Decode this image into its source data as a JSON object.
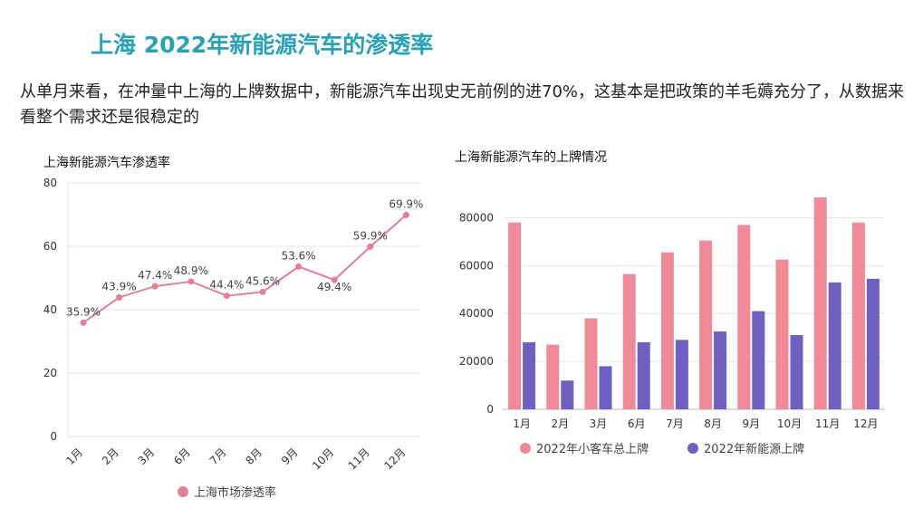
{
  "page": {
    "title": "上海 2022年新能源汽车的渗透率",
    "paragraph": "从单月来看，在冲量中上海的上牌数据中，新能源汽车出现史无前例的进70%，这基本是把政策的羊毛薅充分了，从数据来看整个需求还是很稳定的"
  },
  "chart_data": [
    {
      "type": "line",
      "title": "上海新能源汽车渗透率",
      "categories": [
        "1月",
        "2月",
        "3月",
        "6月",
        "7月",
        "8月",
        "9月",
        "10月",
        "11月",
        "12月"
      ],
      "series": [
        {
          "name": "上海市场渗透率",
          "values": [
            35.9,
            43.9,
            47.4,
            48.9,
            44.4,
            45.6,
            53.6,
            49.4,
            59.9,
            69.9
          ],
          "labels": [
            "35.9%",
            "43.9%",
            "47.4%",
            "48.9%",
            "44.4%",
            "45.6%",
            "53.6%",
            "49.4%",
            "59.9%",
            "69.9%"
          ],
          "color": "#e57f93"
        }
      ],
      "ylim": [
        0,
        80
      ],
      "yticks": [
        0,
        20,
        40,
        60,
        80
      ],
      "legend": "bottom",
      "grid": true
    },
    {
      "type": "bar",
      "title": "上海新能源汽车的上牌情况",
      "categories": [
        "1月",
        "2月",
        "3月",
        "6月",
        "7月",
        "8月",
        "9月",
        "10月",
        "11月",
        "12月"
      ],
      "series": [
        {
          "name": "2022年小客车总上牌",
          "values": [
            78000,
            27000,
            38000,
            56500,
            65500,
            70500,
            77000,
            62500,
            88500,
            78000
          ],
          "color": "#f08a98"
        },
        {
          "name": "2022年新能源上牌",
          "values": [
            28000,
            12000,
            18000,
            28000,
            29000,
            32500,
            41000,
            31000,
            53000,
            54500
          ],
          "color": "#6f5fc0"
        }
      ],
      "ylim": [
        0,
        90000
      ],
      "yticks": [
        0,
        20000,
        40000,
        60000,
        80000
      ],
      "legend": "bottom",
      "grid": true
    }
  ]
}
